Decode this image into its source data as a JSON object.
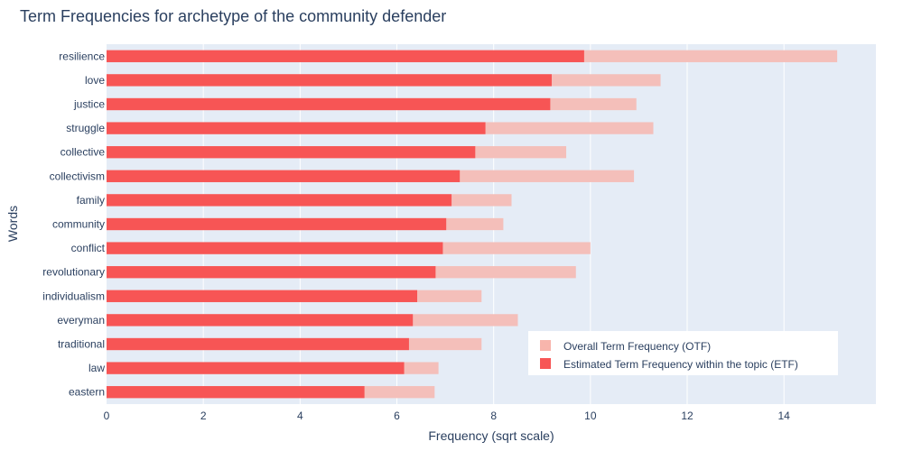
{
  "chart_data": {
    "type": "bar",
    "orientation": "horizontal",
    "barmode": "overlay",
    "title": "Term Frequencies for archetype of the community defender",
    "xlabel": "Frequency (sqrt scale)",
    "ylabel": "Words",
    "xlim": [
      0,
      15.9
    ],
    "xticks": [
      0,
      2,
      4,
      6,
      8,
      10,
      12,
      14
    ],
    "grid": true,
    "legend_position": "bottom-right",
    "categories": [
      "resilience",
      "love",
      "justice",
      "struggle",
      "collective",
      "collectivism",
      "family",
      "community",
      "conflict",
      "revolutionary",
      "individualism",
      "everyman",
      "traditional",
      "law",
      "eastern"
    ],
    "series": [
      {
        "name": "Overall Term Frequency (OTF)",
        "color": "#f4bfba",
        "legend_color": "#f8b5ac",
        "values": [
          15.1,
          11.45,
          10.95,
          11.3,
          9.5,
          10.9,
          8.37,
          8.2,
          10.0,
          9.7,
          7.75,
          8.5,
          7.75,
          6.86,
          6.78
        ]
      },
      {
        "name": "Estimated Term Frequency within the topic (ETF)",
        "color": "#f75555",
        "legend_color": "#f75555",
        "values": [
          9.87,
          9.2,
          9.17,
          7.83,
          7.62,
          7.3,
          7.13,
          7.02,
          6.95,
          6.8,
          6.42,
          6.33,
          6.25,
          6.15,
          5.33
        ]
      }
    ]
  }
}
